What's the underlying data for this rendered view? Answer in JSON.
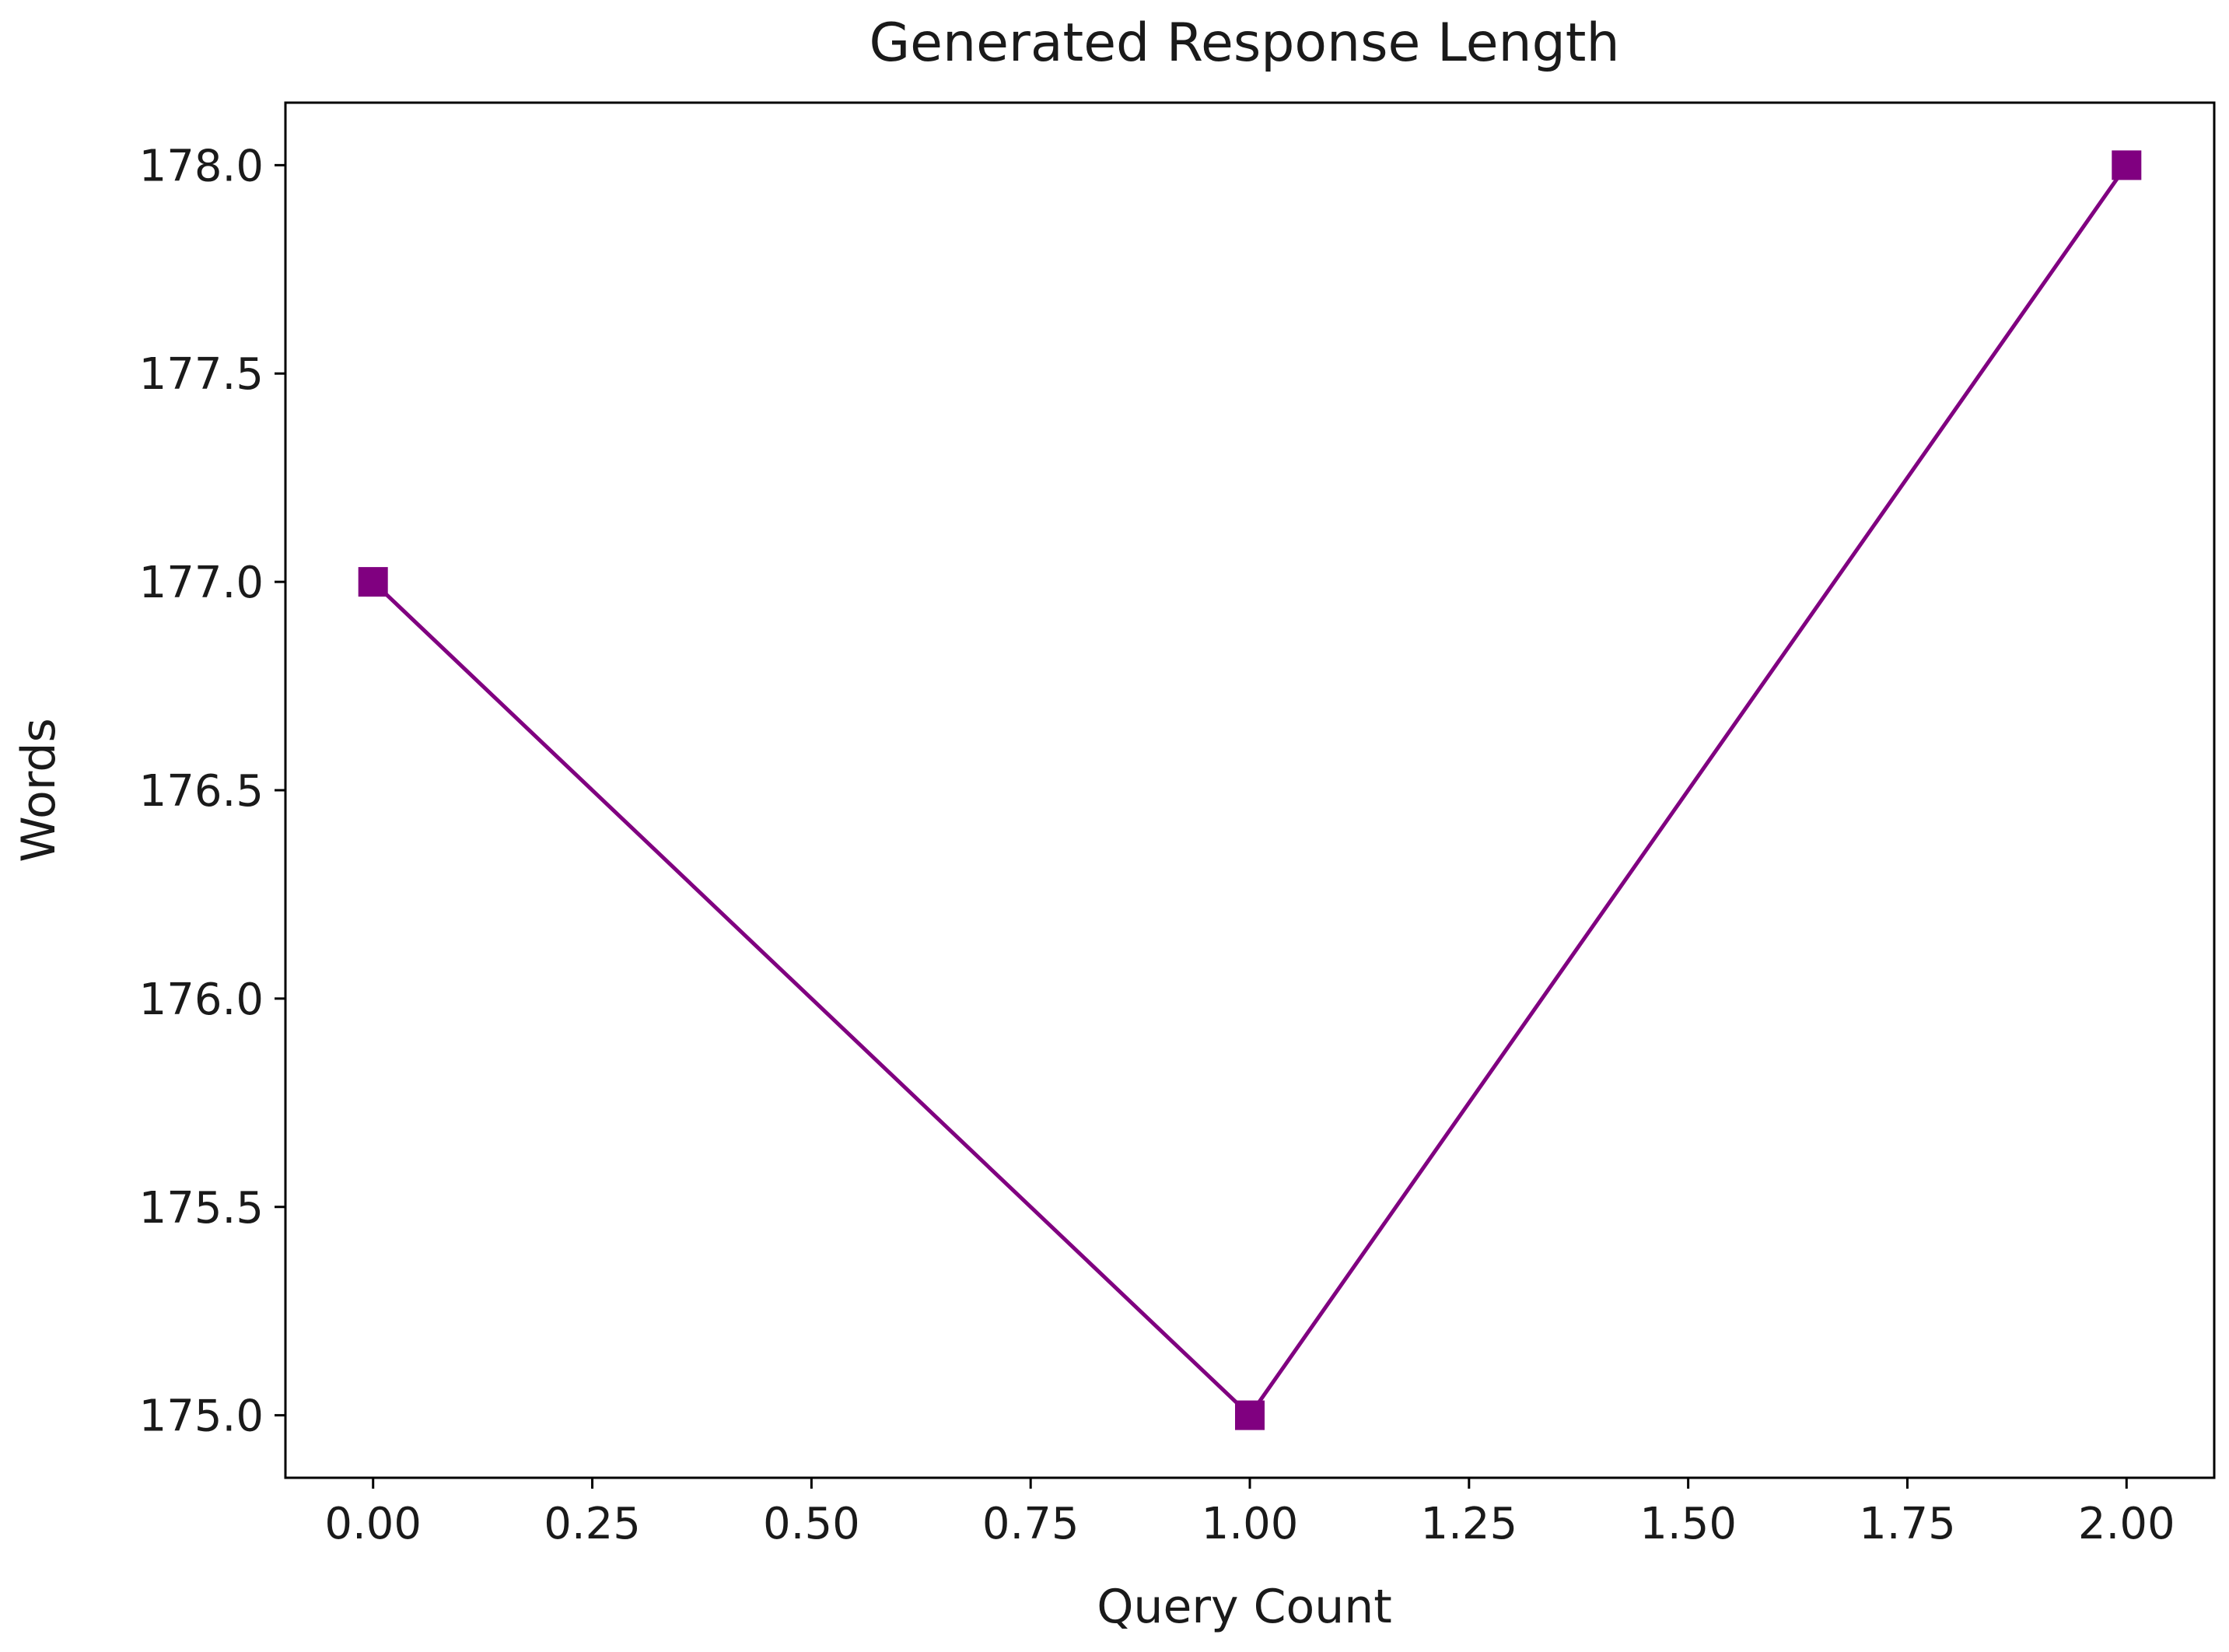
{
  "chart_data": {
    "type": "line",
    "title": "Generated Response Length",
    "xlabel": "Query Count",
    "ylabel": "Words",
    "x": [
      0,
      1,
      2
    ],
    "series": [
      {
        "values": [
          177,
          175,
          178
        ],
        "color": "#800080",
        "marker": "square"
      }
    ],
    "xlim": [
      -0.1,
      2.1
    ],
    "ylim": [
      174.85,
      178.15
    ],
    "xticks": [
      0.0,
      0.25,
      0.5,
      0.75,
      1.0,
      1.25,
      1.5,
      1.75,
      2.0
    ],
    "xtick_labels": [
      "0.00",
      "0.25",
      "0.50",
      "0.75",
      "1.00",
      "1.25",
      "1.50",
      "1.75",
      "2.00"
    ],
    "yticks": [
      175.0,
      175.5,
      176.0,
      176.5,
      177.0,
      177.5,
      178.0
    ],
    "ytick_labels": [
      "175.0",
      "175.5",
      "176.0",
      "176.5",
      "177.0",
      "177.5",
      "178.0"
    ],
    "grid": false,
    "legend": "none"
  }
}
